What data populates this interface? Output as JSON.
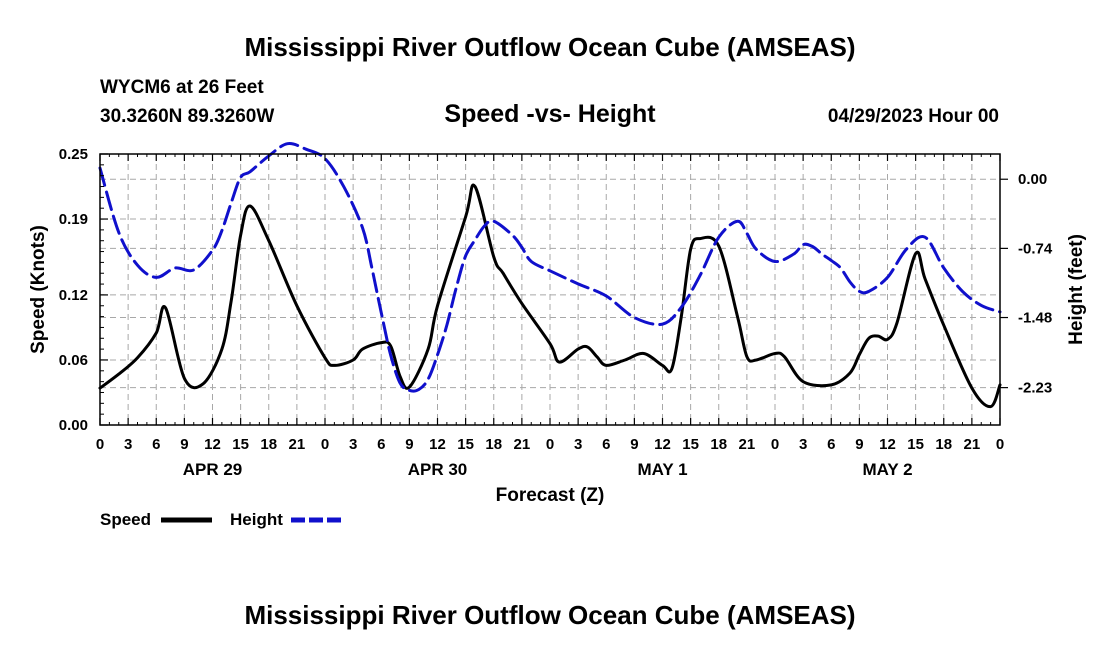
{
  "page": {
    "title": "Mississippi River Outflow Ocean Cube (AMSEAS)",
    "station": "WYCM6 at 26 Feet",
    "location": "30.3260N  89.3260W",
    "chart_title": "Speed -vs- Height",
    "date": "04/29/2023 Hour 00",
    "footer_title": "Mississippi River Outflow Ocean Cube (AMSEAS)"
  },
  "chart_data": {
    "type": "line",
    "title": "Speed -vs- Height",
    "xlabel": "Forecast (Z)",
    "ylabel": "Speed (Knots)",
    "y2label": "Height (feet)",
    "xlim": [
      0,
      96
    ],
    "ylim": [
      0,
      0.25
    ],
    "y2lim": [
      -2.63,
      0.27
    ],
    "x_ticks": [
      0,
      3,
      6,
      9,
      12,
      15,
      18,
      21,
      24,
      27,
      30,
      33,
      36,
      39,
      42,
      45,
      48,
      51,
      54,
      57,
      60,
      63,
      66,
      69,
      72,
      75,
      78,
      81,
      84,
      87,
      90,
      93,
      96
    ],
    "x_tick_labels": [
      "0",
      "3",
      "6",
      "9",
      "12",
      "15",
      "18",
      "21",
      "0",
      "3",
      "6",
      "9",
      "12",
      "15",
      "18",
      "21",
      "0",
      "3",
      "6",
      "9",
      "12",
      "15",
      "18",
      "21",
      "0",
      "3",
      "6",
      "9",
      "12",
      "15",
      "18",
      "21",
      "0"
    ],
    "y_ticks": [
      0.0,
      0.06,
      0.12,
      0.19,
      0.25
    ],
    "y_tick_labels": [
      "0.00",
      "0.06",
      "0.12",
      "0.19",
      "0.25"
    ],
    "y2_ticks": [
      -2.23,
      -1.48,
      -0.74,
      0.0
    ],
    "y2_tick_labels": [
      "-2.23",
      "-1.48",
      "-0.74",
      "0.00"
    ],
    "day_labels": [
      {
        "x": 12,
        "label": "APR 29"
      },
      {
        "x": 36,
        "label": "APR 30"
      },
      {
        "x": 60,
        "label": "MAY 1"
      },
      {
        "x": 84,
        "label": "MAY 2"
      }
    ],
    "grid": true,
    "legend_position": "bottom-left",
    "series": [
      {
        "name": "Speed",
        "axis": "left",
        "color": "#000000",
        "dash": "solid",
        "x": [
          0,
          2,
          4,
          6,
          7,
          9,
          11,
          13,
          14,
          15,
          16,
          18,
          21,
          24,
          25,
          27,
          28,
          30,
          31,
          32,
          33,
          35,
          36,
          39,
          40,
          42,
          43,
          45,
          48,
          49,
          51,
          52,
          53,
          54,
          56,
          58,
          60,
          61,
          62,
          63,
          64,
          66,
          68,
          69,
          70,
          72,
          73,
          75,
          78,
          80,
          81,
          82,
          83,
          84
        ],
        "y": [
          0.034,
          0.047,
          0.062,
          0.085,
          0.108,
          0.043,
          0.038,
          0.07,
          0.115,
          0.175,
          0.202,
          0.17,
          0.11,
          0.062,
          0.055,
          0.06,
          0.07,
          0.076,
          0.073,
          0.045,
          0.035,
          0.07,
          0.11,
          0.192,
          0.22,
          0.155,
          0.14,
          0.112,
          0.075,
          0.058,
          0.07,
          0.072,
          0.063,
          0.055,
          0.06,
          0.066,
          0.055,
          0.052,
          0.1,
          0.162,
          0.172,
          0.165,
          0.1,
          0.063,
          0.06,
          0.066,
          0.063,
          0.04,
          0.037,
          0.048,
          0.065,
          0.08,
          0.082,
          0.079
        ],
        "labels_x": [
          84,
          85,
          87,
          88,
          90,
          93,
          95,
          96
        ],
        "labels_y": [
          0.079,
          0.094,
          0.158,
          0.135,
          0.092,
          0.034,
          0.017,
          0.037
        ]
      },
      {
        "name": "Height",
        "axis": "right",
        "color": "#1010cc",
        "dash": "dashed",
        "x": [
          0,
          2,
          4,
          6,
          8,
          10,
          12,
          13,
          14,
          15,
          16,
          18,
          20,
          22,
          24,
          26,
          28,
          29,
          30,
          31,
          32,
          33,
          34,
          35,
          36,
          37,
          38,
          39,
          40,
          41,
          42,
          44,
          45,
          46,
          48,
          51,
          54,
          57,
          60,
          62,
          64,
          66,
          68,
          69,
          70,
          72,
          74,
          75,
          76,
          77,
          78,
          79,
          80,
          81,
          82,
          84,
          86,
          88,
          90,
          92,
          94,
          96
        ],
        "y": [
          0.12,
          -0.57,
          -0.92,
          -1.05,
          -0.95,
          -0.97,
          -0.76,
          -0.55,
          -0.25,
          0.02,
          0.08,
          0.25,
          0.38,
          0.32,
          0.22,
          -0.08,
          -0.52,
          -0.95,
          -1.43,
          -1.88,
          -2.18,
          -2.26,
          -2.25,
          -2.14,
          -1.88,
          -1.56,
          -1.16,
          -0.82,
          -0.65,
          -0.5,
          -0.45,
          -0.6,
          -0.73,
          -0.88,
          -0.98,
          -1.12,
          -1.25,
          -1.48,
          -1.55,
          -1.37,
          -1.03,
          -0.62,
          -0.45,
          -0.58,
          -0.75,
          -0.88,
          -0.8,
          -0.7,
          -0.72,
          -0.8,
          -0.87,
          -0.95,
          -1.1,
          -1.2,
          -1.2,
          -1.05,
          -0.75,
          -0.62,
          -0.95,
          -1.2,
          -1.35,
          -1.42
        ]
      }
    ]
  },
  "legend": {
    "speed_label": "Speed",
    "height_label": "Height"
  }
}
